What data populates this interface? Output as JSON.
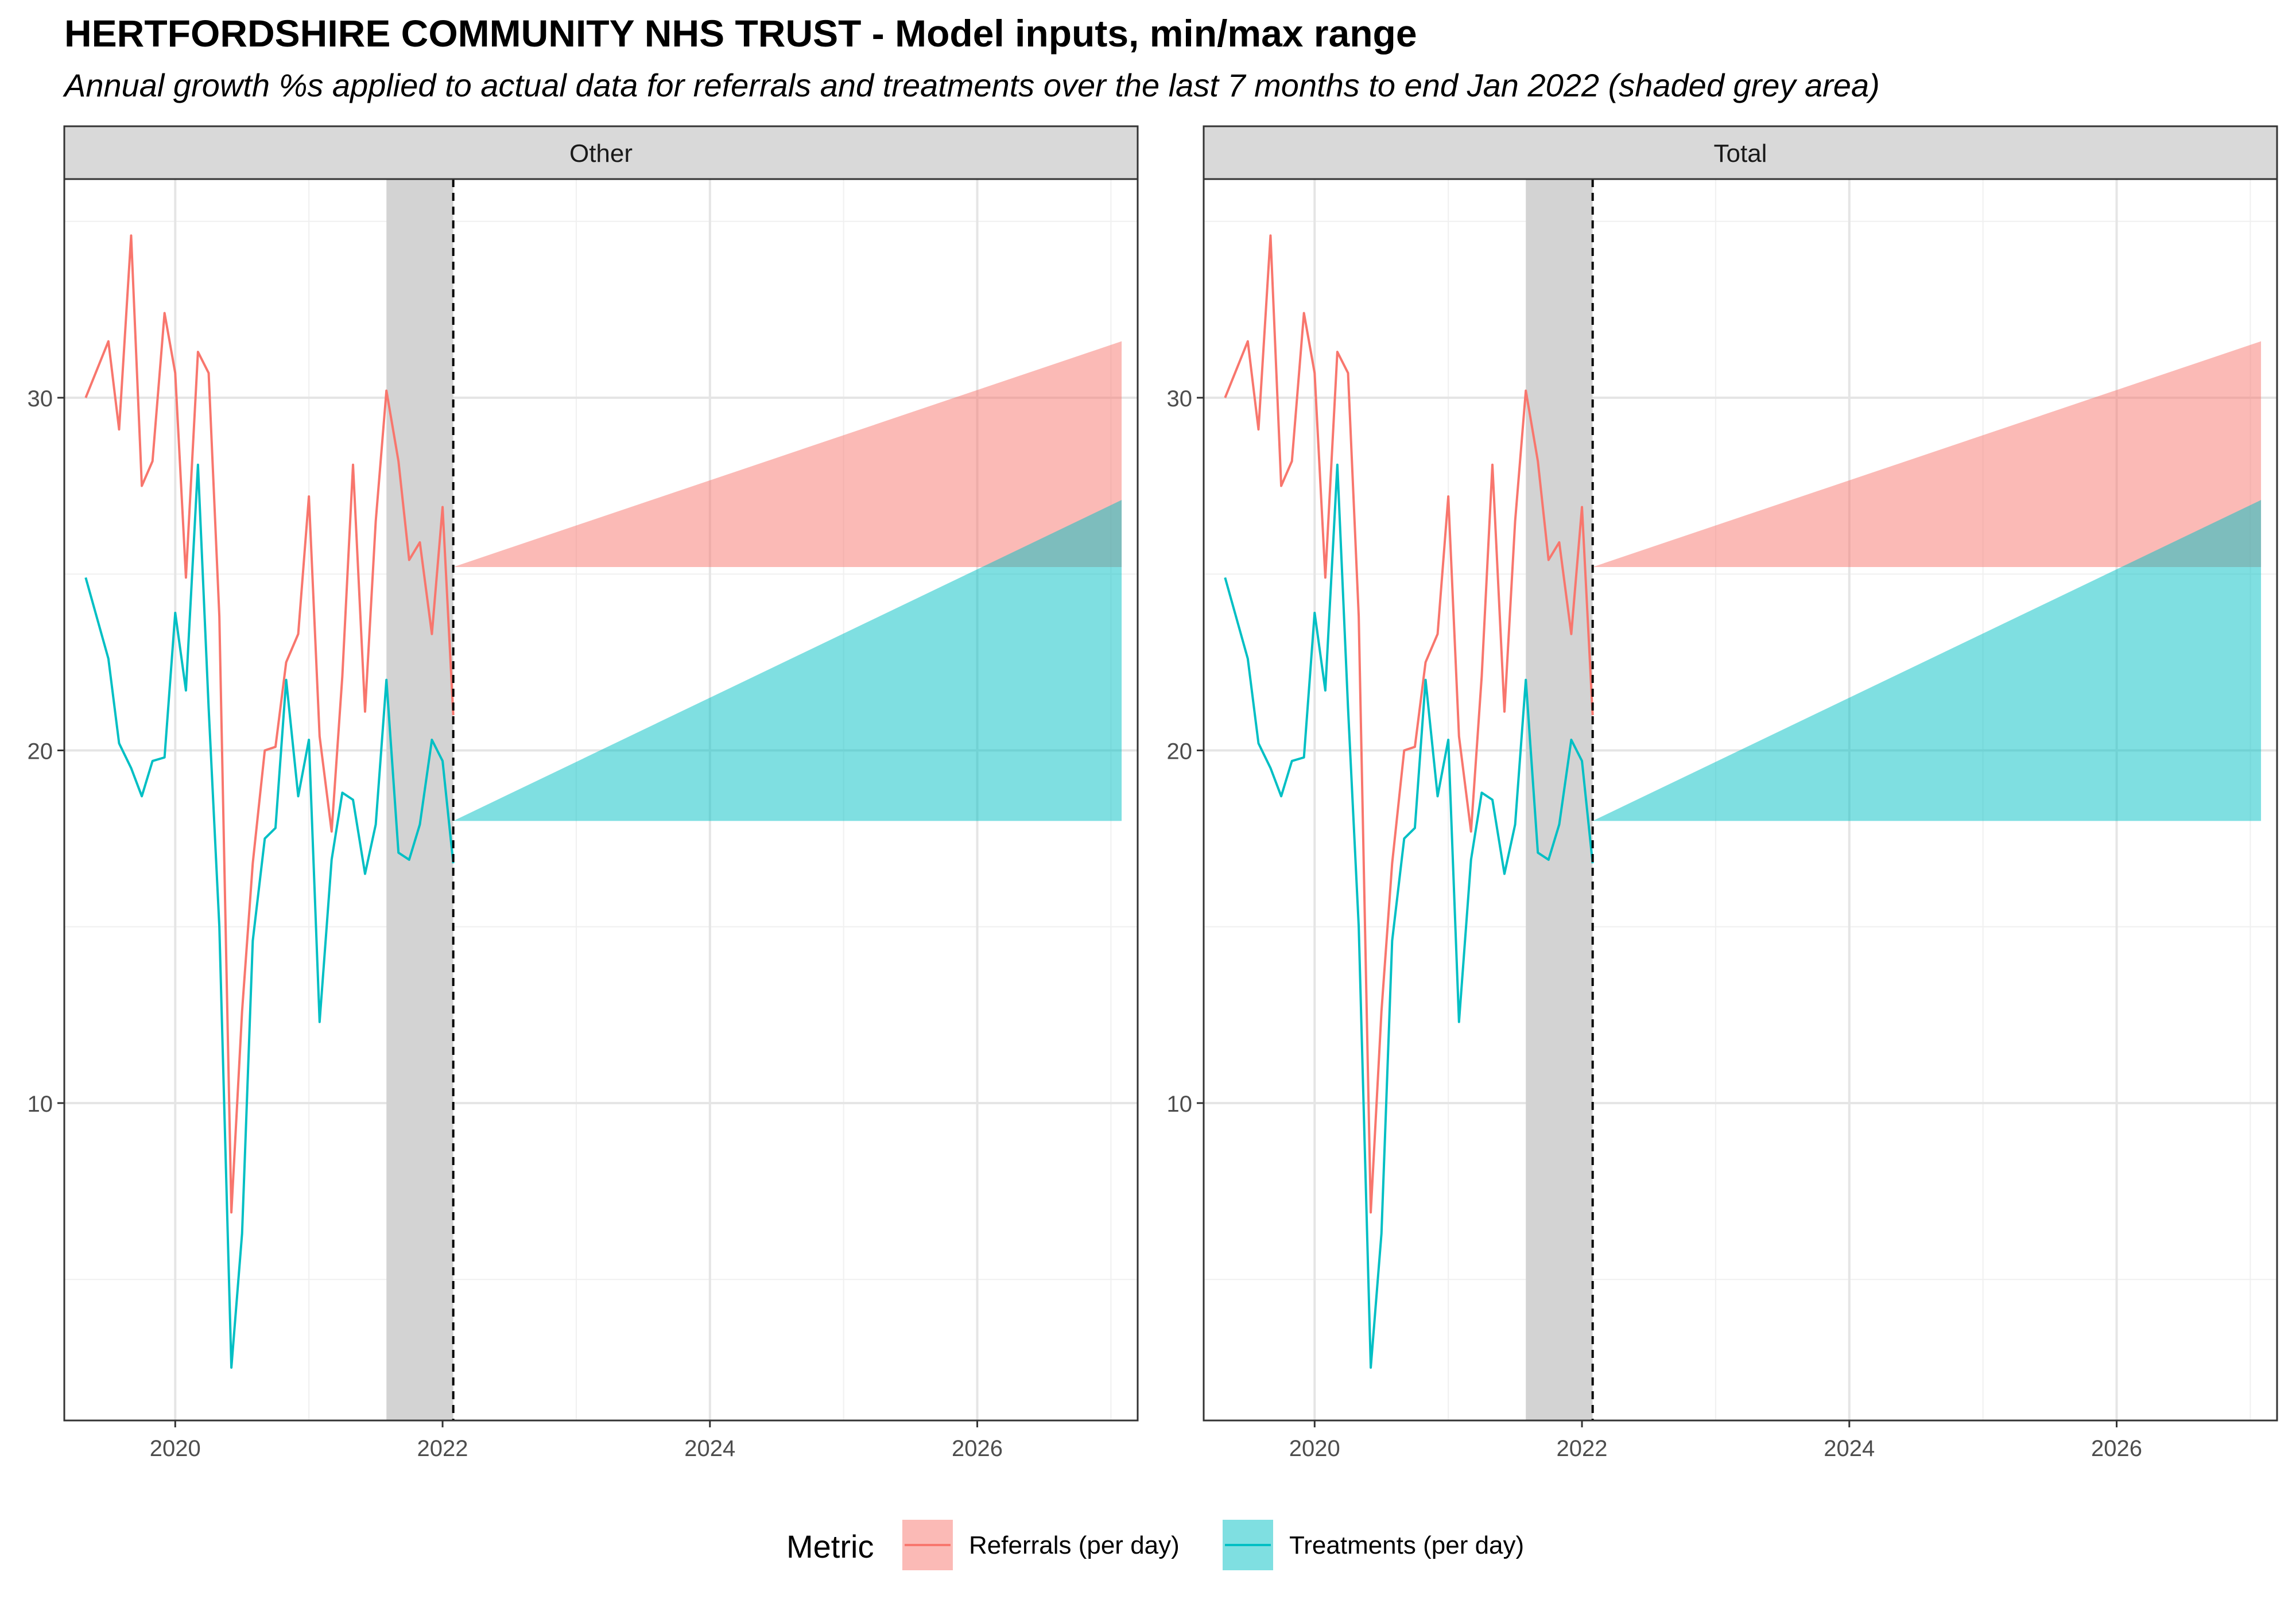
{
  "title": "HERTFORDSHIRE COMMUNITY NHS TRUST - Model inputs, min/max range",
  "subtitle": "Annual growth %s applied to actual data for referrals and treatments over the last 7 months to end Jan 2022 (shaded grey area)",
  "legend": {
    "title": "Metric",
    "items": [
      {
        "label": "Referrals (per day)",
        "color": "#F8766D"
      },
      {
        "label": "Treatments (per day)",
        "color": "#00BFC4"
      }
    ]
  },
  "chart_data": {
    "type": "line",
    "xlabel": "",
    "ylabel": "",
    "xlim": [
      2019.17,
      2027.2
    ],
    "ylim": [
      1.0,
      36.2
    ],
    "x_ticks": [
      2020,
      2022,
      2024,
      2026
    ],
    "y_ticks": [
      10,
      20,
      30
    ],
    "grid": true,
    "legend_position": "bottom",
    "shaded_period": {
      "start": 2021.58,
      "end": 2022.08,
      "color": "#d3d3d3"
    },
    "forecast_start": 2022.08,
    "x": [
      2019.33,
      2019.5,
      2019.58,
      2019.67,
      2019.75,
      2019.83,
      2019.92,
      2020.0,
      2020.08,
      2020.17,
      2020.25,
      2020.33,
      2020.42,
      2020.5,
      2020.58,
      2020.67,
      2020.75,
      2020.83,
      2020.92,
      2021.0,
      2021.08,
      2021.17,
      2021.25,
      2021.33,
      2021.42,
      2021.5,
      2021.58,
      2021.67,
      2021.75,
      2021.83,
      2021.92,
      2022.0,
      2022.08
    ],
    "panels": [
      {
        "name": "Other",
        "series": [
          {
            "name": "Referrals (per day)",
            "color": "#F8766D",
            "values": [
              30.0,
              31.6,
              29.1,
              34.6,
              27.5,
              28.2,
              32.4,
              30.7,
              24.9,
              31.3,
              30.7,
              23.8,
              6.9,
              12.6,
              16.8,
              20.0,
              20.1,
              22.5,
              23.3,
              27.2,
              20.4,
              17.7,
              22.1,
              28.1,
              21.1,
              26.5,
              30.2,
              28.2,
              25.4,
              25.9,
              23.3,
              26.9,
              21.0
            ]
          },
          {
            "name": "Treatments (per day)",
            "color": "#00BFC4",
            "values": [
              24.9,
              22.6,
              20.2,
              19.5,
              18.7,
              19.7,
              19.8,
              23.9,
              21.7,
              28.1,
              21.2,
              15.0,
              2.5,
              6.3,
              14.6,
              17.5,
              17.8,
              22.0,
              18.7,
              20.3,
              12.3,
              16.9,
              18.8,
              18.6,
              16.5,
              17.9,
              22.0,
              17.1,
              16.9,
              17.9,
              20.3,
              19.7,
              16.8
            ]
          }
        ],
        "ranges": [
          {
            "name": "Referrals (per day)",
            "color": "#F8766D",
            "x": [
              2022.08,
              2027.08
            ],
            "lower": [
              25.2,
              25.2
            ],
            "upper": [
              25.2,
              31.6
            ]
          },
          {
            "name": "Treatments (per day)",
            "color": "#00BFC4",
            "x": [
              2022.08,
              2027.08
            ],
            "lower": [
              18.0,
              18.0
            ],
            "upper": [
              18.0,
              27.1
            ]
          }
        ]
      },
      {
        "name": "Total",
        "series": [
          {
            "name": "Referrals (per day)",
            "color": "#F8766D",
            "values": [
              30.0,
              31.6,
              29.1,
              34.6,
              27.5,
              28.2,
              32.4,
              30.7,
              24.9,
              31.3,
              30.7,
              23.8,
              6.9,
              12.6,
              16.8,
              20.0,
              20.1,
              22.5,
              23.3,
              27.2,
              20.4,
              17.7,
              22.1,
              28.1,
              21.1,
              26.5,
              30.2,
              28.2,
              25.4,
              25.9,
              23.3,
              26.9,
              21.0
            ]
          },
          {
            "name": "Treatments (per day)",
            "color": "#00BFC4",
            "values": [
              24.9,
              22.6,
              20.2,
              19.5,
              18.7,
              19.7,
              19.8,
              23.9,
              21.7,
              28.1,
              21.2,
              15.0,
              2.5,
              6.3,
              14.6,
              17.5,
              17.8,
              22.0,
              18.7,
              20.3,
              12.3,
              16.9,
              18.8,
              18.6,
              16.5,
              17.9,
              22.0,
              17.1,
              16.9,
              17.9,
              20.3,
              19.7,
              16.8
            ]
          }
        ],
        "ranges": [
          {
            "name": "Referrals (per day)",
            "color": "#F8766D",
            "x": [
              2022.08,
              2027.08
            ],
            "lower": [
              25.2,
              25.2
            ],
            "upper": [
              25.2,
              31.6
            ]
          },
          {
            "name": "Treatments (per day)",
            "color": "#00BFC4",
            "x": [
              2022.08,
              2027.08
            ],
            "lower": [
              18.0,
              18.0
            ],
            "upper": [
              18.0,
              27.1
            ]
          }
        ]
      }
    ]
  }
}
